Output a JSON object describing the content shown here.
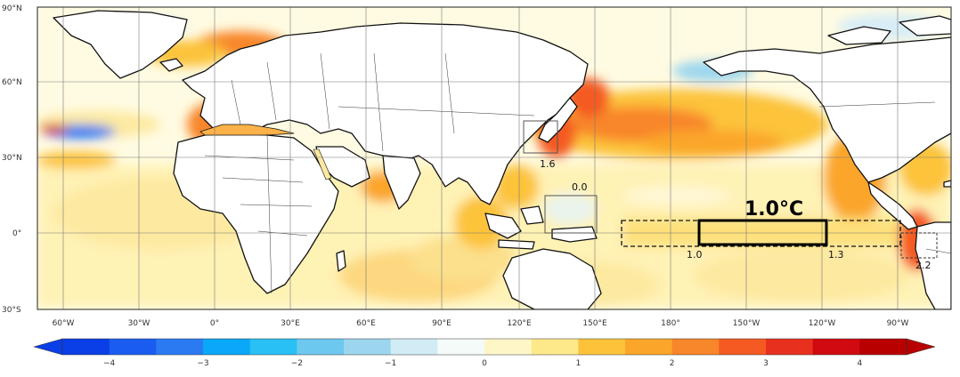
{
  "map": {
    "lat_ticks": [
      "90°N",
      "60°N",
      "30°N",
      "0°",
      "30°S"
    ],
    "lon_ticks": [
      "60°W",
      "30°W",
      "0°",
      "30°E",
      "60°E",
      "90°E",
      "120°E",
      "150°E",
      "180°",
      "150°W",
      "120°W",
      "90°W"
    ],
    "box_labels": {
      "japan_sea": "1.6",
      "west_pacific": "0.0",
      "nino_west": "1.0",
      "nino_east": "1.3",
      "peru": "2.2",
      "nino34_title": "1.0°C"
    }
  },
  "colorbar": {
    "ticks": [
      "−4",
      "−3",
      "−2",
      "−1",
      "0",
      "1",
      "2",
      "3",
      "4"
    ],
    "colors": [
      "#0a3ee6",
      "#1a5cf0",
      "#2a7af2",
      "#0aa8f8",
      "#28c0f5",
      "#6cc8ee",
      "#9cd6ee",
      "#d2ecf6",
      "#f4fbf8",
      "#fff6c8",
      "#fde88a",
      "#fcc33a",
      "#fba62a",
      "#f8862a",
      "#f45a22",
      "#e8301e",
      "#d00a10",
      "#b80000"
    ]
  }
}
